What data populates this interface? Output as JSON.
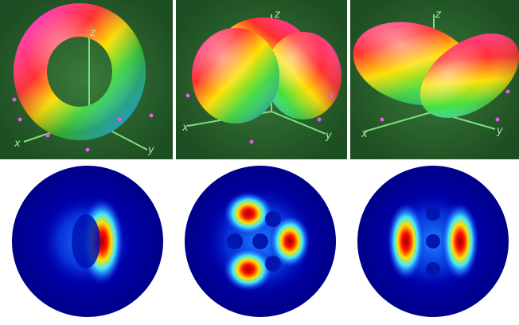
{
  "panels": [
    {
      "x_label": "x",
      "y_label": "y",
      "z_label": "z"
    },
    {
      "x_label": "x",
      "y_label": "y",
      "z_label": "z"
    },
    {
      "x_label": "x",
      "y_label": "y",
      "z_label": "z"
    }
  ]
}
